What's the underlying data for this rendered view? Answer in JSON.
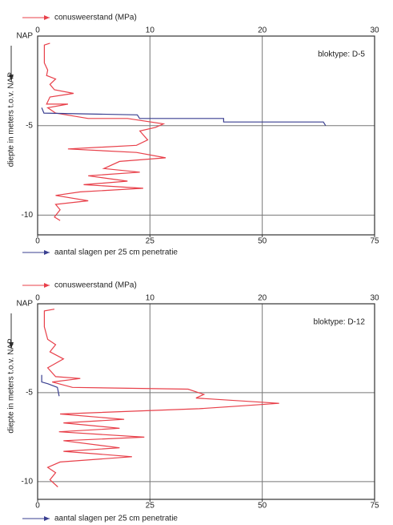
{
  "chart_data": [
    {
      "type": "line",
      "annotation": "bloktype: D-5",
      "y_label": "diepte in meters t.o.v. NAP",
      "xlim": [
        0,
        30
      ],
      "xticks": [
        0,
        10,
        20,
        30
      ],
      "x2lim": [
        0,
        75
      ],
      "x2ticks": [
        0,
        25,
        50,
        75
      ],
      "ylim": [
        -11.1,
        0
      ],
      "yticks": [
        {
          "value": 0,
          "label": "NAP"
        },
        -5,
        -10
      ],
      "grid": true,
      "series": [
        {
          "name": "conusweerstand (MPa)",
          "color": "#e8404a",
          "x": [
            1.1,
            0.6,
            0.6,
            0.9,
            0.8,
            1.6,
            1.1,
            1.5,
            3.2,
            1.1,
            0.8,
            2.7,
            0.9,
            1.6,
            4.5,
            8.0,
            11.2,
            10.5,
            9.1,
            9.8,
            8.8,
            2.7,
            8.8,
            11.4,
            7.3,
            5.9,
            9.1,
            4.5,
            8.0,
            4.1,
            9.4,
            3.8,
            1.6,
            4.5,
            1.6,
            2.0,
            1.5,
            2.0
          ],
          "values": [
            -0.4,
            -0.5,
            -1.5,
            -1.9,
            -2.2,
            -2.4,
            -2.7,
            -3.0,
            -3.2,
            -3.4,
            -3.8,
            -3.8,
            -4.0,
            -4.3,
            -4.6,
            -4.6,
            -4.9,
            -5.1,
            -5.3,
            -5.8,
            -6.1,
            -6.3,
            -6.5,
            -6.8,
            -7.0,
            -7.4,
            -7.6,
            -7.8,
            -8.1,
            -8.3,
            -8.5,
            -8.7,
            -8.9,
            -9.2,
            -9.4,
            -9.7,
            -10.1,
            -10.3
          ]
        },
        {
          "name": "aantal slagen per 25 cm penetratie",
          "color": "#3a3f90",
          "axis": "x2",
          "x": [
            0.9,
            1.4,
            22.2,
            22.7,
            41.4,
            41.4,
            63.6,
            64.1
          ],
          "values": [
            -4.0,
            -4.3,
            -4.4,
            -4.6,
            -4.6,
            -4.8,
            -4.8,
            -5.0
          ]
        }
      ]
    },
    {
      "type": "line",
      "annotation": "bloktype: D-12",
      "y_label": "diepte in meters t.o.v. NAP",
      "xlim": [
        0,
        30
      ],
      "xticks": [
        0,
        10,
        20,
        30
      ],
      "x2lim": [
        0,
        75
      ],
      "x2ticks": [
        0,
        25,
        50,
        75
      ],
      "ylim": [
        -11,
        0
      ],
      "yticks": [
        {
          "value": 0,
          "label": "NAP"
        },
        -5,
        -10
      ],
      "grid": true,
      "series": [
        {
          "name": "conusweerstand (MPa)",
          "color": "#e8404a",
          "x": [
            1.5,
            0.6,
            0.6,
            0.9,
            1.6,
            1.1,
            2.3,
            0.9,
            1.6,
            3.8,
            1.3,
            3.1,
            13.4,
            14.8,
            14.1,
            21.5,
            14.4,
            2.0,
            7.7,
            2.3,
            7.3,
            1.9,
            9.5,
            2.3,
            7.3,
            2.3,
            8.4,
            2.0,
            0.9,
            1.6,
            1.1,
            1.8
          ],
          "values": [
            -0.3,
            -0.4,
            -1.3,
            -2.0,
            -2.3,
            -2.7,
            -3.1,
            -3.6,
            -4.1,
            -4.2,
            -4.4,
            -4.7,
            -4.8,
            -5.1,
            -5.3,
            -5.6,
            -5.9,
            -6.2,
            -6.5,
            -6.7,
            -7.0,
            -7.2,
            -7.5,
            -7.7,
            -8.1,
            -8.3,
            -8.6,
            -8.9,
            -9.2,
            -9.5,
            -9.9,
            -10.3
          ]
        },
        {
          "name": "aantal slagen per 25 cm penetratie",
          "color": "#3a3f90",
          "axis": "x2",
          "x": [
            0.9,
            0.9,
            2.3,
            4.4,
            4.8
          ],
          "values": [
            -4.0,
            -4.4,
            -4.5,
            -4.7,
            -5.2
          ]
        }
      ]
    }
  ]
}
